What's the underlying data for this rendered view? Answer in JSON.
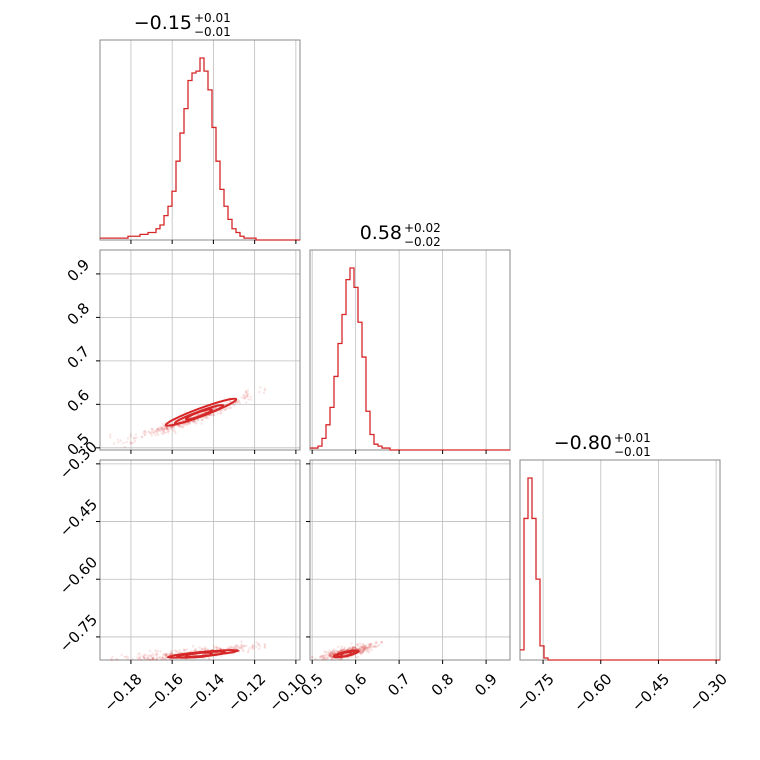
{
  "chart_data": {
    "type": "corner",
    "color": "#d62728",
    "parameters": [
      {
        "index": 0,
        "median": -0.15,
        "title": "−0.15",
        "plus": "+0.01",
        "minus": "−0.01",
        "range": [
          -0.195,
          -0.098
        ],
        "ticks": [
          -0.18,
          -0.16,
          -0.14,
          -0.12,
          -0.1
        ],
        "tick_labels": [
          "−0.18",
          "−0.16",
          "−0.14",
          "−0.12",
          "−0.10"
        ]
      },
      {
        "index": 1,
        "median": 0.58,
        "title": "0.58",
        "plus": "+0.02",
        "minus": "−0.02",
        "range": [
          0.495,
          0.955
        ],
        "ticks": [
          0.5,
          0.6,
          0.7,
          0.8,
          0.9
        ],
        "tick_labels": [
          "0.5",
          "0.6",
          "0.7",
          "0.8",
          "0.9"
        ]
      },
      {
        "index": 2,
        "median": -0.8,
        "title": "−0.80",
        "plus": "+0.01",
        "minus": "−0.01",
        "range": [
          -0.81,
          -0.29
        ],
        "ticks": [
          -0.75,
          -0.6,
          -0.45,
          -0.3
        ],
        "tick_labels": [
          "−0.75",
          "−0.60",
          "−0.45",
          "−0.30"
        ]
      }
    ],
    "histograms": [
      {
        "param": 0,
        "edges_range": [
          -0.195,
          -0.098
        ],
        "counts": [
          1,
          1,
          1,
          1,
          1,
          1,
          1,
          2,
          2,
          2,
          3,
          3,
          4,
          4,
          6,
          8,
          13,
          18,
          26,
          42,
          57,
          70,
          85,
          89,
          90,
          97,
          90,
          80,
          60,
          42,
          27,
          18,
          11,
          6,
          4,
          2,
          1,
          1,
          1,
          0,
          0,
          0,
          0,
          0,
          0,
          0,
          0,
          0,
          0,
          0
        ]
      },
      {
        "param": 1,
        "edges_range": [
          0.495,
          0.955
        ],
        "counts": [
          1,
          1,
          2,
          6,
          13,
          22,
          38,
          55,
          70,
          88,
          94,
          84,
          66,
          48,
          20,
          8,
          3,
          2,
          1,
          1,
          0,
          0,
          0,
          0,
          0,
          0,
          0,
          0,
          0,
          0,
          0,
          0,
          0,
          0,
          0,
          0,
          0,
          0,
          0,
          0,
          0,
          0,
          0,
          0,
          0,
          0,
          0,
          0,
          0,
          0
        ]
      },
      {
        "param": 2,
        "edges_range": [
          -0.81,
          -0.29
        ],
        "counts": [
          5,
          70,
          90,
          70,
          40,
          7,
          1,
          0,
          0,
          0,
          0,
          0,
          0,
          0,
          0,
          0,
          0,
          0,
          0,
          0,
          0,
          0,
          0,
          0,
          0,
          0,
          0,
          0,
          0,
          0,
          0,
          0,
          0,
          0,
          0,
          0,
          0,
          0,
          0,
          0,
          0,
          0,
          0,
          0,
          0,
          0,
          0,
          0,
          0,
          0
        ]
      }
    ],
    "pairs": [
      {
        "x_param": 0,
        "y_param": 1,
        "correlation": "positive",
        "trend": {
          "x": [
            -0.19,
            -0.17,
            -0.15,
            -0.13,
            -0.115
          ],
          "y": [
            0.51,
            0.535,
            0.565,
            0.605,
            0.635
          ]
        },
        "contours": [
          {
            "center": [
              -0.147,
              0.577
            ],
            "half_axes": [
              0.007,
              0.009
            ]
          },
          {
            "center": [
              -0.147,
              0.577
            ],
            "half_axes": [
              0.013,
              0.018
            ]
          },
          {
            "center": [
              -0.146,
              0.582
            ],
            "half_axes": [
              0.019,
              0.026
            ]
          }
        ]
      },
      {
        "x_param": 0,
        "y_param": 2,
        "correlation": "positive",
        "trend": {
          "x": [
            -0.19,
            -0.17,
            -0.15,
            -0.13,
            -0.115
          ],
          "y": [
            -0.81,
            -0.803,
            -0.795,
            -0.783,
            -0.772
          ]
        },
        "contours": [
          {
            "center": [
              -0.147,
              -0.797
            ],
            "half_axes": [
              0.007,
              0.004
            ]
          },
          {
            "center": [
              -0.146,
              -0.796
            ],
            "half_axes": [
              0.013,
              0.007
            ]
          },
          {
            "center": [
              -0.145,
              -0.794
            ],
            "half_axes": [
              0.019,
              0.01
            ]
          }
        ]
      },
      {
        "x_param": 1,
        "y_param": 2,
        "correlation": "positive",
        "trend": {
          "x": [
            0.5,
            0.54,
            0.58,
            0.62,
            0.66
          ],
          "y": [
            -0.81,
            -0.8,
            -0.79,
            -0.78,
            -0.765
          ]
        },
        "contours": [
          {
            "center": [
              0.578,
              -0.795
            ],
            "half_axes": [
              0.012,
              0.005
            ]
          },
          {
            "center": [
              0.578,
              -0.795
            ],
            "half_axes": [
              0.022,
              0.009
            ]
          },
          {
            "center": [
              0.578,
              -0.794
            ],
            "half_axes": [
              0.032,
              0.013
            ]
          }
        ]
      }
    ],
    "grid": true
  }
}
